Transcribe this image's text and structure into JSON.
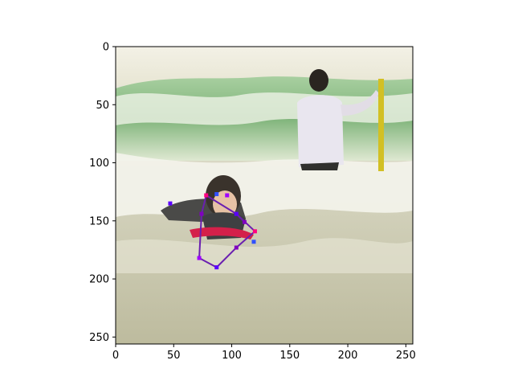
{
  "figure": {
    "x_ticks": [
      "0",
      "50",
      "100",
      "150",
      "200",
      "250"
    ],
    "y_ticks": [
      "0",
      "50",
      "100",
      "150",
      "200",
      "250"
    ],
    "x_range": [
      0,
      256
    ],
    "y_range": [
      256,
      0
    ],
    "grid": false
  },
  "image": {
    "description_icon": "beach-surf-photo",
    "palette": {
      "sky": "#f1efe2",
      "wave_green": "#8fc08a",
      "foam": "#f4f4ec",
      "water": "#c9c8ae",
      "sand_water": "#bdbb9e"
    }
  },
  "pose": {
    "limb_color": "#6a1fb0",
    "joint_colors": [
      "#5b00ff",
      "#8000c0",
      "#ff0080",
      "#3050ff",
      "#a000ff"
    ],
    "keypoints": [
      {
        "x": 47,
        "y": 135
      },
      {
        "x": 74,
        "y": 144
      },
      {
        "x": 78,
        "y": 128
      },
      {
        "x": 87,
        "y": 127
      },
      {
        "x": 96,
        "y": 128
      },
      {
        "x": 104,
        "y": 144
      },
      {
        "x": 111,
        "y": 151
      },
      {
        "x": 120,
        "y": 159
      },
      {
        "x": 119,
        "y": 168
      },
      {
        "x": 72,
        "y": 182
      },
      {
        "x": 87,
        "y": 190
      },
      {
        "x": 104,
        "y": 173
      }
    ],
    "limbs": [
      [
        1,
        9
      ],
      [
        9,
        10
      ],
      [
        10,
        11
      ],
      [
        11,
        7
      ],
      [
        7,
        5
      ],
      [
        5,
        2
      ],
      [
        2,
        1
      ],
      [
        5,
        6
      ]
    ]
  }
}
